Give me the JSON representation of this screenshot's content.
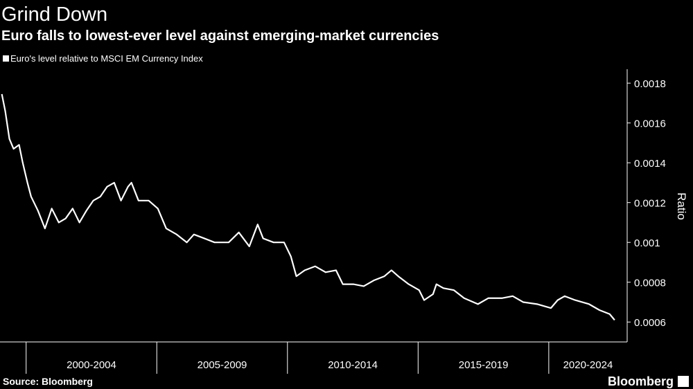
{
  "chart_data": {
    "type": "line",
    "title": "Grind Down",
    "subtitle": "Euro falls to lowest-ever level against emerging-market currencies",
    "y_axis_label": "Ratio",
    "source": "Source: Bloomberg",
    "brand": "Bloomberg",
    "x": [
      1999.07,
      1999.2,
      1999.36,
      1999.52,
      1999.73,
      1999.87,
      2000.05,
      2000.19,
      2000.45,
      2000.72,
      2000.98,
      2001.25,
      2001.51,
      2001.78,
      2002.04,
      2002.31,
      2002.57,
      2002.84,
      2003.1,
      2003.37,
      2003.63,
      2003.9,
      2004.03,
      2004.3,
      2004.69,
      2005.04,
      2005.36,
      2005.76,
      2006.15,
      2006.42,
      2006.82,
      2007.21,
      2007.75,
      2008.14,
      2008.54,
      2008.86,
      2009.07,
      2009.47,
      2009.87,
      2010.13,
      2010.34,
      2010.66,
      2011.06,
      2011.46,
      2011.86,
      2012.12,
      2012.52,
      2012.92,
      2013.32,
      2013.71,
      2013.98,
      2014.24,
      2014.64,
      2015.04,
      2015.23,
      2015.57,
      2015.7,
      2015.97,
      2016.37,
      2016.76,
      2017.29,
      2017.69,
      2018.22,
      2018.62,
      2019.02,
      2019.55,
      2020.08,
      2020.34,
      2020.61,
      2021.01,
      2021.54,
      2021.94,
      2022.33,
      2022.52
    ],
    "series": [
      {
        "name": "Euro's level relative to MSCI EM Currency Index",
        "color": "#ffffff",
        "values": [
          0.001745,
          0.00166,
          0.00152,
          0.00147,
          0.00149,
          0.0014,
          0.0013,
          0.00123,
          0.00116,
          0.00107,
          0.00117,
          0.0011,
          0.00112,
          0.00117,
          0.0011,
          0.00116,
          0.00121,
          0.00123,
          0.00128,
          0.0013,
          0.00121,
          0.00128,
          0.0013,
          0.00121,
          0.00121,
          0.00117,
          0.00107,
          0.00104,
          0.001,
          0.00104,
          0.00102,
          0.001,
          0.001,
          0.00105,
          0.00098,
          0.00109,
          0.00102,
          0.001,
          0.001,
          0.00093,
          0.00083,
          0.00086,
          0.00088,
          0.00085,
          0.00086,
          0.00079,
          0.00079,
          0.00078,
          0.00081,
          0.00083,
          0.00086,
          0.00083,
          0.00079,
          0.00076,
          0.00071,
          0.00074,
          0.00079,
          0.00077,
          0.00076,
          0.00072,
          0.00069,
          0.00072,
          0.00072,
          0.00073,
          0.0007,
          0.00069,
          0.00067,
          0.00071,
          0.00073,
          0.00071,
          0.00069,
          0.00066,
          0.00064,
          0.00061
        ]
      }
    ],
    "xlim": [
      1999,
      2023
    ],
    "xticks": [
      2000,
      2005,
      2010,
      2015,
      2020
    ],
    "x_period_labels": [
      "2000-2004",
      "2005-2009",
      "2010-2014",
      "2015-2019",
      "2020-2024"
    ],
    "ylim": [
      0.0005,
      0.00187
    ],
    "yticks": [
      0.0006,
      0.0008,
      0.001,
      0.0012,
      0.0014,
      0.0016,
      0.0018
    ],
    "grid": false
  }
}
